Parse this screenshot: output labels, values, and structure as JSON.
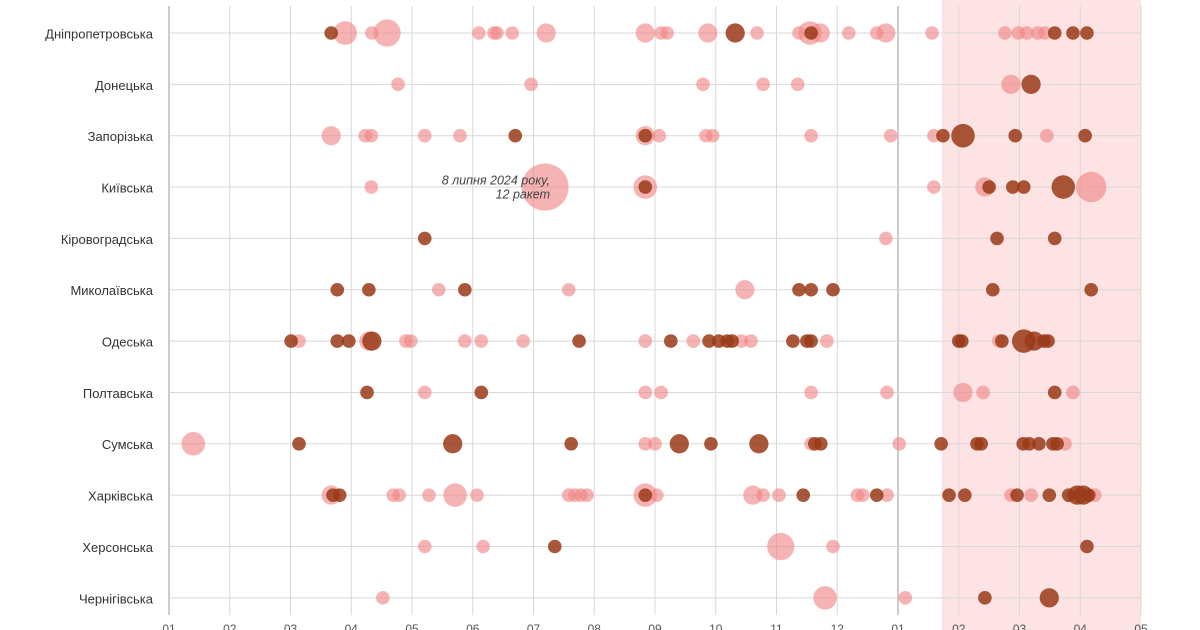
{
  "chart_data": {
    "type": "bubble",
    "categories": [
      "Дніпропетровська",
      "Донецька",
      "Запорізька",
      "Київська",
      "Кіровоградська",
      "Миколаївська",
      "Одеська",
      "Полтавська",
      "Сумська",
      "Харківська",
      "Херсонська",
      "Чернігівська"
    ],
    "xlim": [
      0,
      16
    ],
    "xticks": [
      {
        "value": 0,
        "label": "01"
      },
      {
        "value": 1,
        "label": "02"
      },
      {
        "value": 2,
        "label": "03"
      },
      {
        "value": 3,
        "label": "04"
      },
      {
        "value": 4,
        "label": "05"
      },
      {
        "value": 5,
        "label": "06"
      },
      {
        "value": 6,
        "label": "07"
      },
      {
        "value": 7,
        "label": "08"
      },
      {
        "value": 8,
        "label": "09"
      },
      {
        "value": 9,
        "label": "10"
      },
      {
        "value": 10,
        "label": "11"
      },
      {
        "value": 11,
        "label": "12"
      },
      {
        "value": 12,
        "label": "01"
      },
      {
        "value": 13,
        "label": "02"
      },
      {
        "value": 14,
        "label": "03"
      },
      {
        "value": 15,
        "label": "04"
      },
      {
        "value": 16,
        "label": "05"
      }
    ],
    "shaded_range": [
      12.72,
      16
    ],
    "grid": true,
    "annotation": [
      "8 липня 2024 року,",
      "12 ракет"
    ],
    "series": [
      {
        "color": "#f08585",
        "x": [
          [
            2.9,
            3.34,
            3.59,
            5.1,
            5.35,
            5.4,
            5.65,
            6.21,
            7.84,
            8.1,
            8.2,
            8.87,
            9.68,
            10.37,
            10.55,
            10.72,
            11.19,
            11.65,
            11.8,
            12.56,
            13.76,
            13.98,
            14.12,
            14.3,
            14.42
          ],
          [
            3.77,
            5.96,
            8.79,
            9.78,
            10.35,
            13.86
          ],
          [
            2.67,
            3.23,
            3.33,
            4.21,
            4.79,
            7.84,
            8.07,
            8.84,
            8.95,
            10.57,
            11.88,
            12.59,
            14.45
          ],
          [
            3.33,
            6.19,
            7.84,
            12.59,
            13.43,
            15.18
          ],
          [
            11.8
          ],
          [
            4.44,
            6.58,
            9.48
          ],
          [
            2.14,
            3.29,
            3.9,
            3.98,
            4.87,
            5.14,
            5.83,
            7.84,
            8.63,
            9.42,
            9.58,
            10.83,
            13.66
          ],
          [
            4.21,
            7.84,
            8.1,
            10.57,
            11.82,
            13.07,
            13.4,
            14.88
          ],
          [
            0.4,
            7.84,
            8.0,
            10.57,
            12.02,
            14.75
          ],
          [
            2.67,
            3.69,
            3.79,
            4.28,
            4.71,
            5.07,
            6.58,
            6.68,
            6.78,
            6.88,
            7.84,
            8.03,
            9.61,
            9.78,
            10.04,
            11.33,
            11.42,
            11.82,
            13.86,
            14.19,
            15.24
          ],
          [
            4.21,
            5.17,
            10.07,
            10.93
          ],
          [
            3.52,
            10.8,
            12.12
          ]
        ],
        "sizes": [
          [
            3,
            1,
            4,
            1,
            1,
            1,
            1,
            2,
            2,
            1,
            1,
            2,
            1,
            1,
            3,
            2,
            1,
            1,
            2,
            1,
            1,
            1,
            1,
            1,
            1
          ],
          [
            1,
            1,
            1,
            1,
            1,
            2
          ],
          [
            2,
            1,
            1,
            1,
            1,
            2,
            1,
            1,
            1,
            1,
            1,
            1,
            1
          ],
          [
            1,
            12,
            3,
            1,
            2,
            5
          ],
          [
            1
          ],
          [
            1,
            1,
            2
          ],
          [
            1,
            2,
            1,
            1,
            1,
            1,
            1,
            1,
            1,
            1,
            1,
            1,
            1
          ],
          [
            1,
            1,
            1,
            1,
            1,
            2,
            1,
            1
          ],
          [
            3,
            1,
            1,
            1,
            1,
            1
          ],
          [
            2,
            1,
            1,
            1,
            3,
            1,
            1,
            1,
            1,
            1,
            3,
            1,
            2,
            1,
            1,
            1,
            1,
            1,
            1,
            1,
            1
          ],
          [
            1,
            1,
            4,
            1
          ],
          [
            1,
            3,
            1
          ]
        ]
      },
      {
        "color": "#9a3a17",
        "x": [
          [
            2.67,
            9.32,
            10.57,
            14.58,
            14.88,
            15.11
          ],
          [
            14.19
          ],
          [
            5.7,
            7.84,
            12.74,
            13.07,
            13.93,
            15.08
          ],
          [
            7.84,
            13.5,
            13.89,
            14.07,
            14.72
          ],
          [
            4.21,
            13.63,
            14.58
          ],
          [
            2.77,
            3.29,
            4.87,
            10.37,
            10.57,
            10.93,
            13.56,
            15.18
          ],
          [
            2.01,
            2.77,
            2.96,
            3.34,
            6.75,
            8.26,
            8.89,
            9.05,
            9.19,
            9.27,
            10.27,
            10.5,
            10.57,
            13.0,
            13.05,
            13.71,
            14.07,
            14.24,
            14.4,
            14.47
          ],
          [
            3.26,
            5.14,
            14.58
          ],
          [
            2.14,
            4.67,
            6.62,
            8.4,
            8.92,
            9.71,
            10.63,
            10.73,
            12.71,
            13.3,
            13.37,
            14.06,
            14.16,
            14.32,
            14.55,
            14.62
          ],
          [
            2.7,
            2.81,
            7.84,
            10.44,
            11.65,
            12.84,
            13.1,
            13.96,
            14.49,
            14.81,
            14.95,
            15.05,
            15.14
          ],
          [
            6.35,
            15.11
          ],
          [
            13.43,
            14.49
          ]
        ],
        "sizes": [
          [
            1,
            2,
            1,
            1,
            1,
            1
          ],
          [
            2
          ],
          [
            1,
            1,
            1,
            3,
            1,
            1
          ],
          [
            1,
            1,
            1,
            1,
            3
          ],
          [
            1,
            1,
            1
          ],
          [
            1,
            1,
            1,
            1,
            1,
            1,
            1,
            1
          ],
          [
            1,
            1,
            1,
            2,
            1,
            1,
            1,
            1,
            1,
            1,
            1,
            1,
            1,
            1,
            1,
            1,
            3,
            2,
            1,
            1
          ],
          [
            1,
            1,
            1
          ],
          [
            1,
            2,
            1,
            2,
            1,
            2,
            1,
            1,
            1,
            1,
            1,
            1,
            1,
            1,
            1,
            1
          ],
          [
            1,
            1,
            1,
            1,
            1,
            1,
            1,
            1,
            1,
            1,
            2,
            2,
            1
          ],
          [
            1,
            1
          ],
          [
            1,
            2
          ]
        ]
      }
    ]
  }
}
